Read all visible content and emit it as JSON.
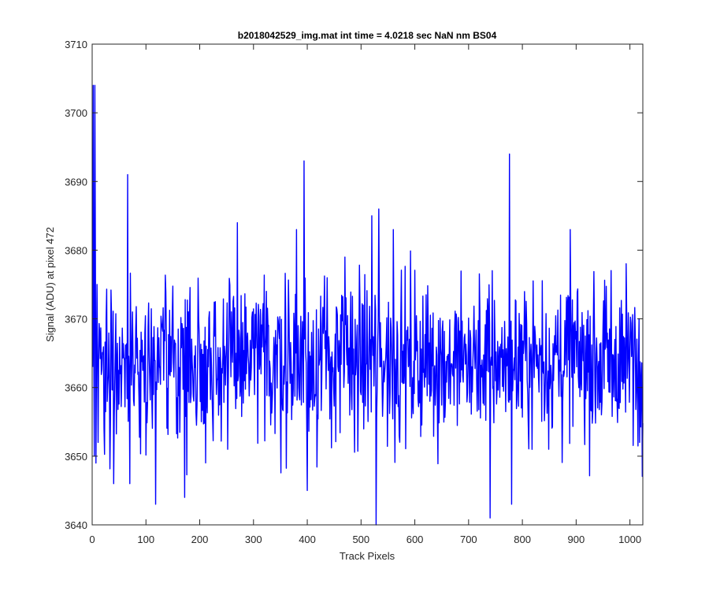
{
  "chart_data": {
    "type": "line",
    "title": "b2018042529_img.mat int time = 4.0218 sec  NaN nm BS04",
    "xlabel": "Track Pixels",
    "ylabel": "Signal (ADU) at pixel 472",
    "xlim": [
      0,
      1024
    ],
    "ylim": [
      3640,
      3710
    ],
    "xticks": [
      0,
      100,
      200,
      300,
      400,
      500,
      600,
      700,
      800,
      900,
      1000
    ],
    "yticks": [
      3640,
      3650,
      3660,
      3670,
      3680,
      3690,
      3700,
      3710
    ],
    "grid": false,
    "legend": "none",
    "line_color": "#0000ff",
    "noise": {
      "x_start": 1,
      "x_end": 1024,
      "mean": 3664,
      "std": 5.8,
      "typical_range": [
        3646,
        3682
      ]
    },
    "series": [
      {
        "points": [
          [
            1,
            3663
          ],
          [
            2,
            3704
          ],
          [
            4,
            3650
          ],
          [
            5,
            3704
          ],
          [
            7,
            3649
          ],
          [
            9,
            3675
          ],
          [
            11,
            3652
          ],
          [
            40,
            3646
          ],
          [
            66,
            3691
          ],
          [
            70,
            3646
          ],
          [
            118,
            3643
          ],
          [
            172,
            3644
          ],
          [
            252,
            3651
          ],
          [
            270,
            3684
          ],
          [
            380,
            3683
          ],
          [
            394,
            3693
          ],
          [
            400,
            3645
          ],
          [
            470,
            3679
          ],
          [
            520,
            3685
          ],
          [
            528,
            3640
          ],
          [
            533,
            3686
          ],
          [
            560,
            3683
          ],
          [
            740,
            3641
          ],
          [
            776,
            3694
          ],
          [
            780,
            3643
          ],
          [
            889,
            3683
          ],
          [
            1018,
            3652
          ]
        ]
      }
    ]
  }
}
